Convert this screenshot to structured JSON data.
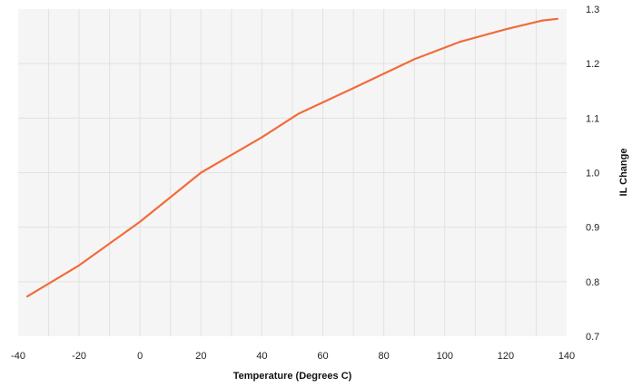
{
  "chart_data": {
    "type": "line",
    "title": "",
    "xlabel": "Temperature (Degrees C)",
    "ylabel": "IL Change",
    "xlim": [
      -40,
      140
    ],
    "ylim": [
      0.7,
      1.3
    ],
    "x_ticks": [
      -40,
      -20,
      0,
      20,
      40,
      60,
      80,
      100,
      120,
      140
    ],
    "y_ticks": [
      "0.7",
      "0.8",
      "0.9",
      "1.0",
      "1.1",
      "1.2",
      "1.3"
    ],
    "y_axis_side": "right",
    "grid": true,
    "legend": "none",
    "series": [
      {
        "color": "#f26b3a",
        "x": [
          -37,
          -20,
          0,
          20,
          40,
          52,
          70,
          90,
          105,
          120,
          132,
          137
        ],
        "y": [
          0.773,
          0.83,
          0.91,
          1.0,
          1.065,
          1.108,
          1.155,
          1.208,
          1.24,
          1.263,
          1.279,
          1.282
        ]
      }
    ],
    "colors": {
      "plot_background": "#f5f5f5",
      "grid": "#e2e2e2",
      "line": "#f26b3a"
    }
  }
}
